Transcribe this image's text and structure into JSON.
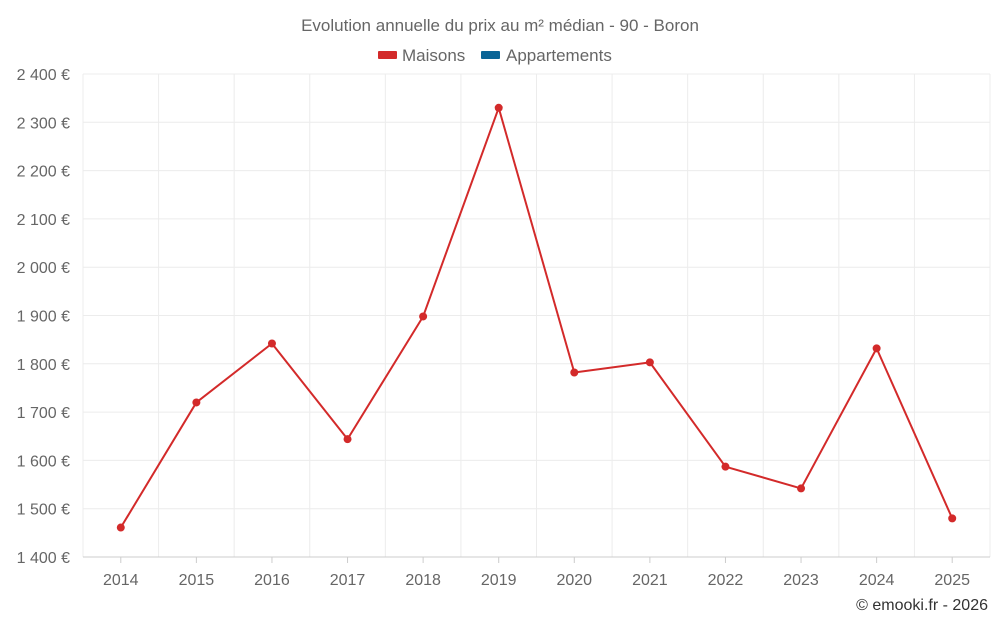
{
  "chart_data": {
    "type": "line",
    "title": "Evolution annuelle du prix au m² médian - 90 - Boron",
    "legend": [
      {
        "name": "Maisons",
        "color": "#d32a2a"
      },
      {
        "name": "Appartements",
        "color": "#0a6496"
      }
    ],
    "categories": [
      "2014",
      "2015",
      "2016",
      "2017",
      "2018",
      "2019",
      "2020",
      "2021",
      "2022",
      "2023",
      "2024",
      "2025"
    ],
    "series": [
      {
        "name": "Maisons",
        "color": "#d32a2a",
        "values": [
          1461,
          1720,
          1842,
          1644,
          1898,
          2330,
          1782,
          1803,
          1587,
          1542,
          1832,
          1480
        ]
      }
    ],
    "ylim": [
      1400,
      2400
    ],
    "yticks": [
      1400,
      1500,
      1600,
      1700,
      1800,
      1900,
      2000,
      2100,
      2200,
      2300,
      2400
    ],
    "ytick_labels": [
      "1 400 €",
      "1 500 €",
      "1 600 €",
      "1 700 €",
      "1 800 €",
      "1 900 €",
      "2 000 €",
      "2 100 €",
      "2 200 €",
      "2 300 €",
      "2 400 €"
    ],
    "grid": true,
    "legend_position": "top-center"
  },
  "credit": "© emooki.fr - 2026"
}
